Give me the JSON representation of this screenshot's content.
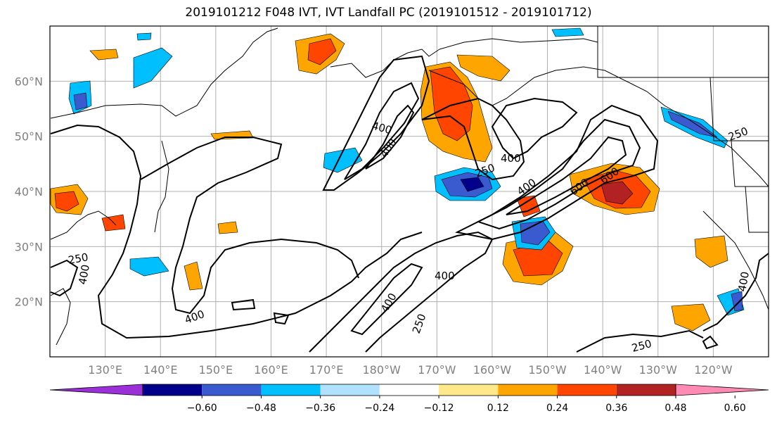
{
  "title": "2019101212 F048 IVT, IVT Landfall PC (2019101512 - 2019101712)",
  "map": {
    "projection": "PlateCarree",
    "lon_range": [
      120,
      250
    ],
    "lat_range": [
      10,
      70
    ],
    "lat_ticks": [
      {
        "value": 60,
        "label": "60°N"
      },
      {
        "value": 50,
        "label": "50°N"
      },
      {
        "value": 40,
        "label": "40°N"
      },
      {
        "value": 30,
        "label": "30°N"
      },
      {
        "value": 20,
        "label": "20°N"
      }
    ],
    "lon_ticks": [
      {
        "value": 130,
        "label": "130°E"
      },
      {
        "value": 140,
        "label": "140°E"
      },
      {
        "value": 150,
        "label": "150°E"
      },
      {
        "value": 160,
        "label": "160°E"
      },
      {
        "value": 170,
        "label": "170°E"
      },
      {
        "value": 180,
        "label": "180°W"
      },
      {
        "value": 190,
        "label": "170°W"
      },
      {
        "value": 200,
        "label": "160°W"
      },
      {
        "value": 210,
        "label": "150°W"
      },
      {
        "value": 220,
        "label": "140°W"
      },
      {
        "value": 230,
        "label": "130°W"
      },
      {
        "value": 240,
        "label": "120°W"
      }
    ],
    "gridlines": true,
    "contour_labels": [
      "400",
      "400",
      "250",
      "400",
      "250",
      "400",
      "400",
      "600",
      "600",
      "250",
      "400",
      "250",
      "400",
      "250",
      "400",
      "400"
    ]
  },
  "colorbar": {
    "extend": "both",
    "tick_labels": [
      "−0.60",
      "−0.48",
      "−0.36",
      "−0.24",
      "−0.12",
      "0.12",
      "0.24",
      "0.36",
      "0.48",
      "0.60"
    ],
    "colors": [
      "#9b30d9",
      "#00008b",
      "#3a5bd0",
      "#00bfff",
      "#b0e2ff",
      "#ffffff",
      "#ffe88a",
      "#ffa500",
      "#ff4500",
      "#b22222",
      "#ff8ab4"
    ]
  }
}
